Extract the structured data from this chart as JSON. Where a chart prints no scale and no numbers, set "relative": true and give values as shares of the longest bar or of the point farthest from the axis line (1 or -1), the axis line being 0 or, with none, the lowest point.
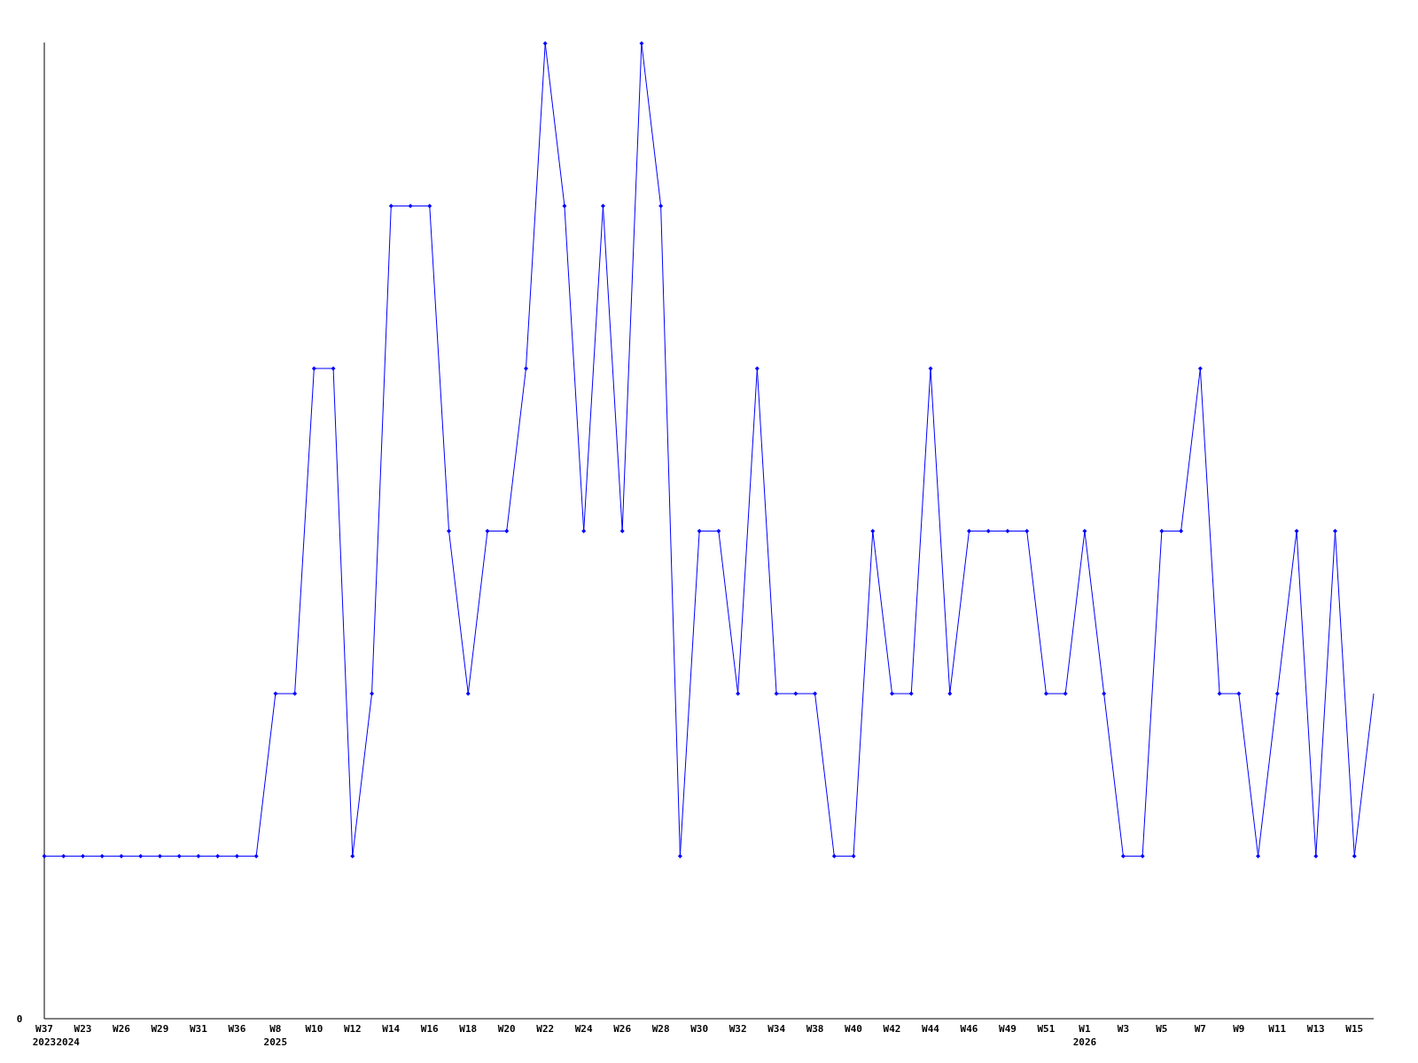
{
  "chart_data": {
    "type": "line",
    "relative": true,
    "marker": "diamond",
    "line_style": "solid",
    "categories": [
      "W37\n2023",
      "\n2024",
      "W23",
      null,
      "W26",
      null,
      "W29",
      null,
      "W31",
      null,
      "W36",
      null,
      "W8\n2025",
      null,
      "W10",
      null,
      "W12",
      null,
      "W14",
      null,
      "W16",
      null,
      "W18",
      null,
      "W20",
      null,
      "W22",
      null,
      "W24",
      null,
      "W26",
      null,
      "W28",
      null,
      "W30",
      null,
      "W32",
      null,
      "W34",
      null,
      "W38",
      null,
      "W40",
      null,
      "W42",
      null,
      "W44",
      null,
      "W46",
      null,
      "W49",
      null,
      "W51",
      null,
      "W1\n2026",
      null,
      "W3",
      null,
      "W5",
      null,
      "W7",
      null,
      "W9",
      null,
      "W11",
      null,
      "W13",
      null,
      "W15",
      null
    ],
    "series": [
      {
        "color": "#0000ff",
        "values": [
          0.1667,
          0.1667,
          0.1667,
          0.1667,
          0.1667,
          0.1667,
          0.1667,
          0.1667,
          0.1667,
          0.1667,
          0.1667,
          0.1667,
          0.3333,
          0.3333,
          0.6667,
          0.6667,
          0.1667,
          0.3333,
          0.8333,
          0.8333,
          0.8333,
          0.5,
          0.3333,
          0.5,
          0.5,
          0.6667,
          1,
          0.8333,
          0.5,
          0.8333,
          0.5,
          1,
          0.8333,
          0.1667,
          0.5,
          0.5,
          0.3333,
          0.6667,
          0.3333,
          0.3333,
          0.3333,
          0.1667,
          0.1667,
          0.5,
          0.3333,
          0.3333,
          0.6667,
          0.3333,
          0.5,
          0.5,
          0.5,
          0.5,
          0.3333,
          0.3333,
          0.5,
          0.3333,
          0.1667,
          0.1667,
          0.5,
          0.5,
          0.6667,
          0.3333,
          0.3333,
          0.1667,
          0.3333,
          0.5,
          0.1667,
          0.5,
          0.1667,
          0.3333
        ]
      }
    ],
    "annotations": [
      "0"
    ]
  }
}
